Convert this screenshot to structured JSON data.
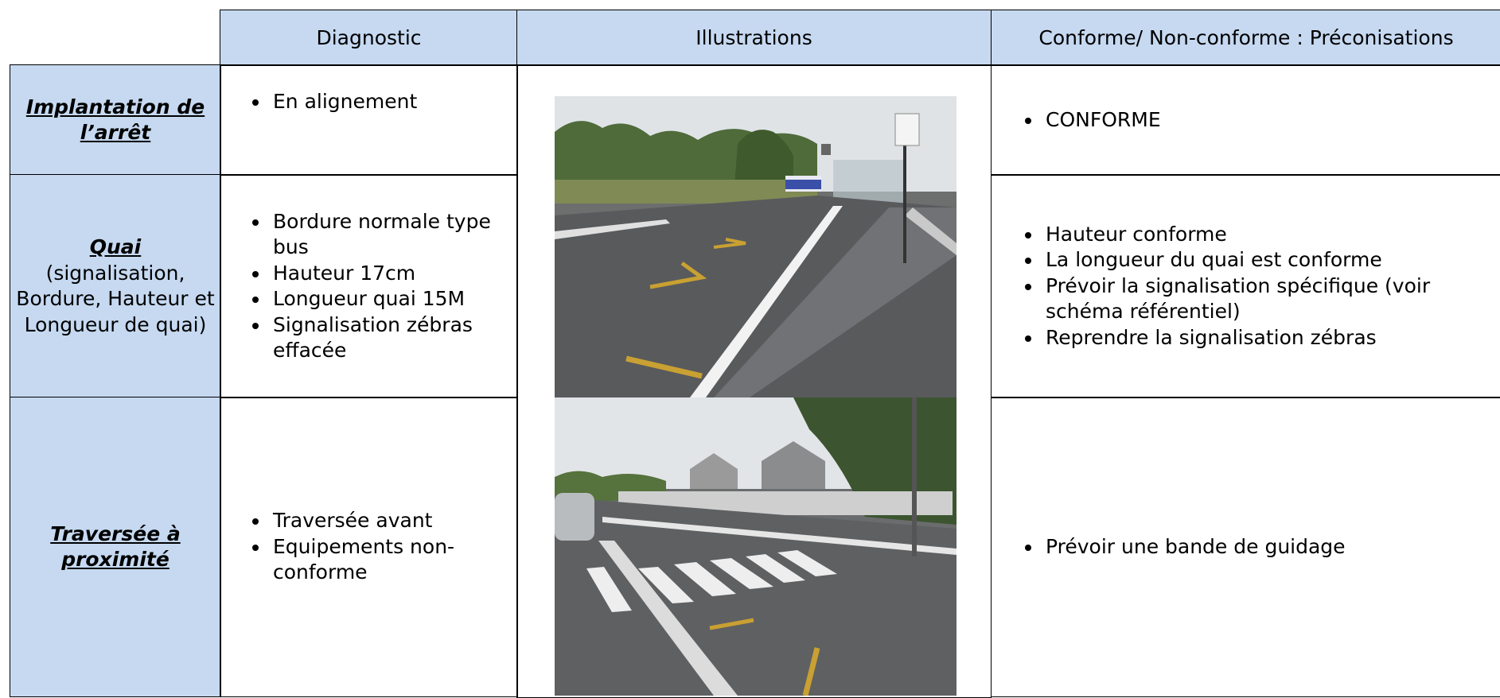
{
  "header": {
    "columns": [
      "Diagnostic",
      "Illustrations",
      "Conforme/ Non-conforme : Préconisations"
    ]
  },
  "rows": [
    {
      "title": "Implantation de l’arrêt",
      "diagnostic": [
        "En alignement"
      ],
      "recommendations": [
        "CONFORME"
      ]
    },
    {
      "title": "Quai",
      "subtitle": "(signalisation, Bordure, Hauteur et Longueur de quai)",
      "diagnostic": [
        "Bordure normale type bus",
        "Hauteur 17cm",
        "Longueur quai 15M",
        "Signalisation zébras effacée"
      ],
      "recommendations": [
        "Hauteur conforme",
        "La longueur du quai est conforme",
        "Prévoir la signalisation spécifique (voir schéma référentiel)",
        "Reprendre la signalisation zébras"
      ]
    },
    {
      "title": "Traversée à proximité",
      "diagnostic": [
        "Traversée avant",
        "Equipements non-conforme"
      ],
      "recommendations": [
        "Prévoir une bande de guidage"
      ]
    }
  ]
}
